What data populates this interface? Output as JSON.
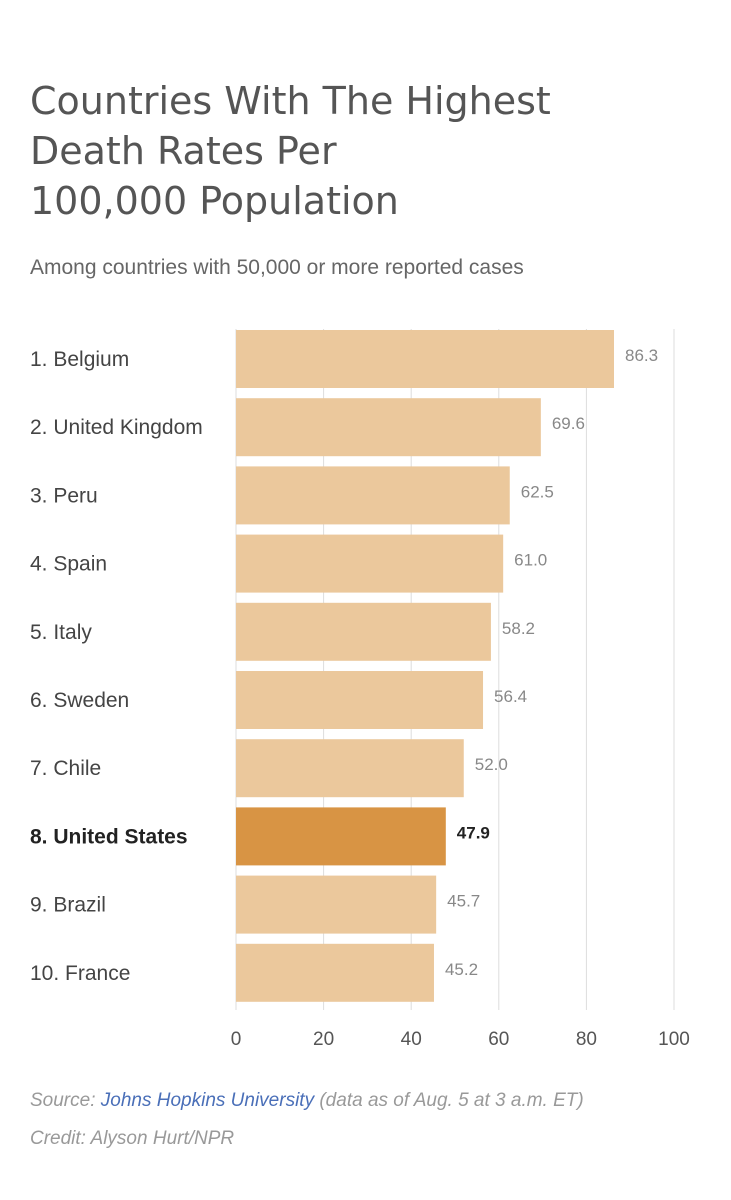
{
  "title_lines": [
    "Countries With The Highest",
    "Death Rates Per",
    "100,000 Population"
  ],
  "subtitle": "Among countries with 50,000 or more reported cases",
  "colors": {
    "bar": "#ebc89c",
    "highlight_bar": "#d89444",
    "grid": "#dddddd",
    "label_text": "#444444",
    "highlight_text": "#222222",
    "value_text": "#888888",
    "footer_text": "#999999",
    "link": "#4a6fb8"
  },
  "chart_data": {
    "type": "bar",
    "orientation": "horizontal",
    "categories": [
      "1. Belgium",
      "2. United Kingdom",
      "3. Peru",
      "4. Spain",
      "5. Italy",
      "6. Sweden",
      "7. Chile",
      "8. United States",
      "9. Brazil",
      "10. France"
    ],
    "values": [
      86.3,
      69.6,
      62.5,
      61.0,
      58.2,
      56.4,
      52.0,
      47.9,
      45.7,
      45.2
    ],
    "value_labels": [
      "86.3",
      "69.6",
      "62.5",
      "61.0",
      "58.2",
      "56.4",
      "52.0",
      "47.9",
      "45.7",
      "45.2"
    ],
    "highlight": "8. United States",
    "xlim": [
      0,
      100
    ],
    "xticks": [
      0,
      20,
      40,
      60,
      80,
      100
    ],
    "grid": true
  },
  "footer": {
    "source_prefix": "Source: ",
    "source_link": "Johns Hopkins University",
    "source_suffix": " (data as of Aug. 5 at 3 a.m. ET)",
    "credit": "Credit: Alyson Hurt/NPR"
  }
}
